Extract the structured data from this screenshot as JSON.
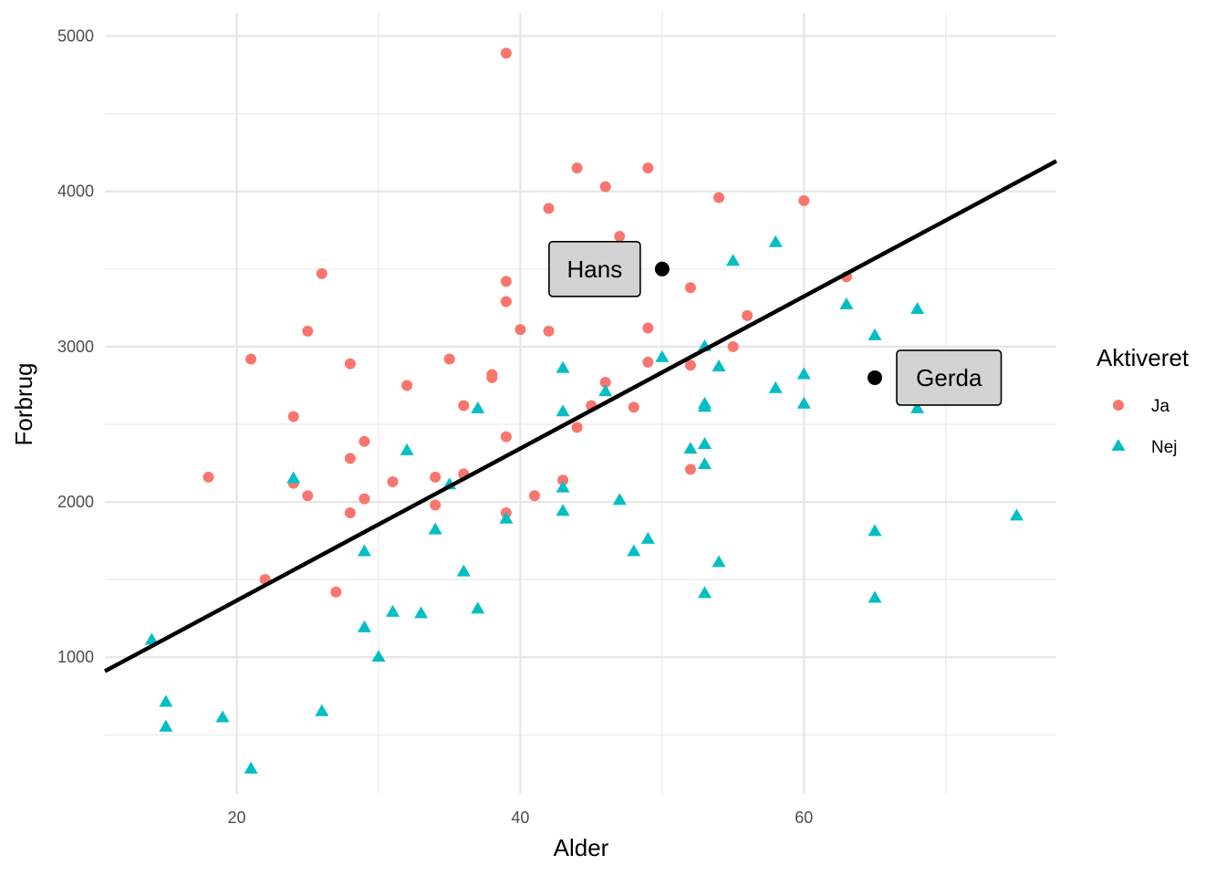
{
  "chart_data": {
    "type": "scatter",
    "xlabel": "Alder",
    "ylabel": "Forbrug",
    "xlim": [
      10.7,
      77.8
    ],
    "ylim": [
      120,
      5150
    ],
    "xticks": [
      20,
      40,
      60
    ],
    "yticks": [
      1000,
      2000,
      3000,
      4000,
      5000
    ],
    "grid": true,
    "legend": {
      "title": "Aktiveret",
      "position": "right",
      "entries": [
        {
          "label": "Ja",
          "shape": "circle",
          "color": "#F8766D"
        },
        {
          "label": "Nej",
          "shape": "triangle",
          "color": "#00BFC4"
        }
      ]
    },
    "series": [
      {
        "name": "Ja",
        "shape": "circle",
        "color": "#F8766D",
        "points": [
          [
            18,
            2160
          ],
          [
            21,
            2920
          ],
          [
            22,
            1500
          ],
          [
            24,
            2550
          ],
          [
            24,
            2120
          ],
          [
            25,
            3100
          ],
          [
            25,
            2040
          ],
          [
            26,
            3470
          ],
          [
            27,
            1420
          ],
          [
            28,
            2890
          ],
          [
            28,
            2280
          ],
          [
            28,
            1930
          ],
          [
            29,
            2390
          ],
          [
            29,
            2020
          ],
          [
            31,
            2130
          ],
          [
            32,
            2750
          ],
          [
            34,
            2160
          ],
          [
            34,
            1980
          ],
          [
            35,
            2920
          ],
          [
            36,
            2620
          ],
          [
            36,
            2180
          ],
          [
            38,
            2820
          ],
          [
            38,
            2800
          ],
          [
            39,
            4890
          ],
          [
            39,
            3420
          ],
          [
            39,
            3290
          ],
          [
            39,
            2420
          ],
          [
            39,
            1930
          ],
          [
            40,
            3110
          ],
          [
            41,
            2040
          ],
          [
            42,
            3890
          ],
          [
            42,
            3100
          ],
          [
            43,
            2140
          ],
          [
            44,
            4150
          ],
          [
            44,
            2480
          ],
          [
            45,
            2620
          ],
          [
            46,
            4030
          ],
          [
            46,
            2770
          ],
          [
            47,
            3710
          ],
          [
            48,
            2610
          ],
          [
            49,
            4150
          ],
          [
            49,
            3120
          ],
          [
            49,
            2900
          ],
          [
            52,
            3380
          ],
          [
            52,
            2880
          ],
          [
            52,
            2210
          ],
          [
            54,
            3960
          ],
          [
            55,
            3000
          ],
          [
            56,
            3200
          ],
          [
            60,
            3940
          ],
          [
            63,
            3450
          ]
        ]
      },
      {
        "name": "Nej",
        "shape": "triangle",
        "color": "#00BFC4",
        "points": [
          [
            14,
            1110
          ],
          [
            15,
            710
          ],
          [
            15,
            550
          ],
          [
            19,
            610
          ],
          [
            21,
            280
          ],
          [
            24,
            2150
          ],
          [
            26,
            650
          ],
          [
            29,
            1680
          ],
          [
            29,
            1190
          ],
          [
            30,
            1000
          ],
          [
            31,
            1290
          ],
          [
            32,
            2330
          ],
          [
            33,
            1280
          ],
          [
            34,
            1820
          ],
          [
            35,
            2110
          ],
          [
            36,
            1550
          ],
          [
            37,
            2600
          ],
          [
            37,
            1310
          ],
          [
            39,
            1890
          ],
          [
            43,
            2860
          ],
          [
            43,
            2580
          ],
          [
            43,
            2090
          ],
          [
            43,
            1940
          ],
          [
            46,
            2710
          ],
          [
            47,
            2010
          ],
          [
            48,
            1680
          ],
          [
            49,
            1760
          ],
          [
            50,
            2930
          ],
          [
            52,
            2340
          ],
          [
            53,
            3000
          ],
          [
            53,
            2630
          ],
          [
            53,
            2610
          ],
          [
            53,
            2370
          ],
          [
            53,
            2240
          ],
          [
            53,
            1410
          ],
          [
            54,
            2870
          ],
          [
            54,
            1610
          ],
          [
            55,
            3550
          ],
          [
            58,
            3670
          ],
          [
            58,
            2730
          ],
          [
            60,
            2820
          ],
          [
            60,
            2630
          ],
          [
            63,
            3270
          ],
          [
            65,
            3070
          ],
          [
            65,
            1810
          ],
          [
            65,
            1380
          ],
          [
            68,
            3240
          ],
          [
            68,
            2600
          ],
          [
            75,
            1910
          ]
        ]
      }
    ],
    "regression_line": {
      "x": [
        10.7,
        77.8
      ],
      "y": [
        910,
        4195
      ],
      "color": "#000000"
    },
    "annotations": [
      {
        "label": "Hans",
        "x": 50,
        "y": 3500,
        "box_side": "left"
      },
      {
        "label": "Gerda",
        "x": 65,
        "y": 2800,
        "box_side": "right"
      }
    ]
  }
}
